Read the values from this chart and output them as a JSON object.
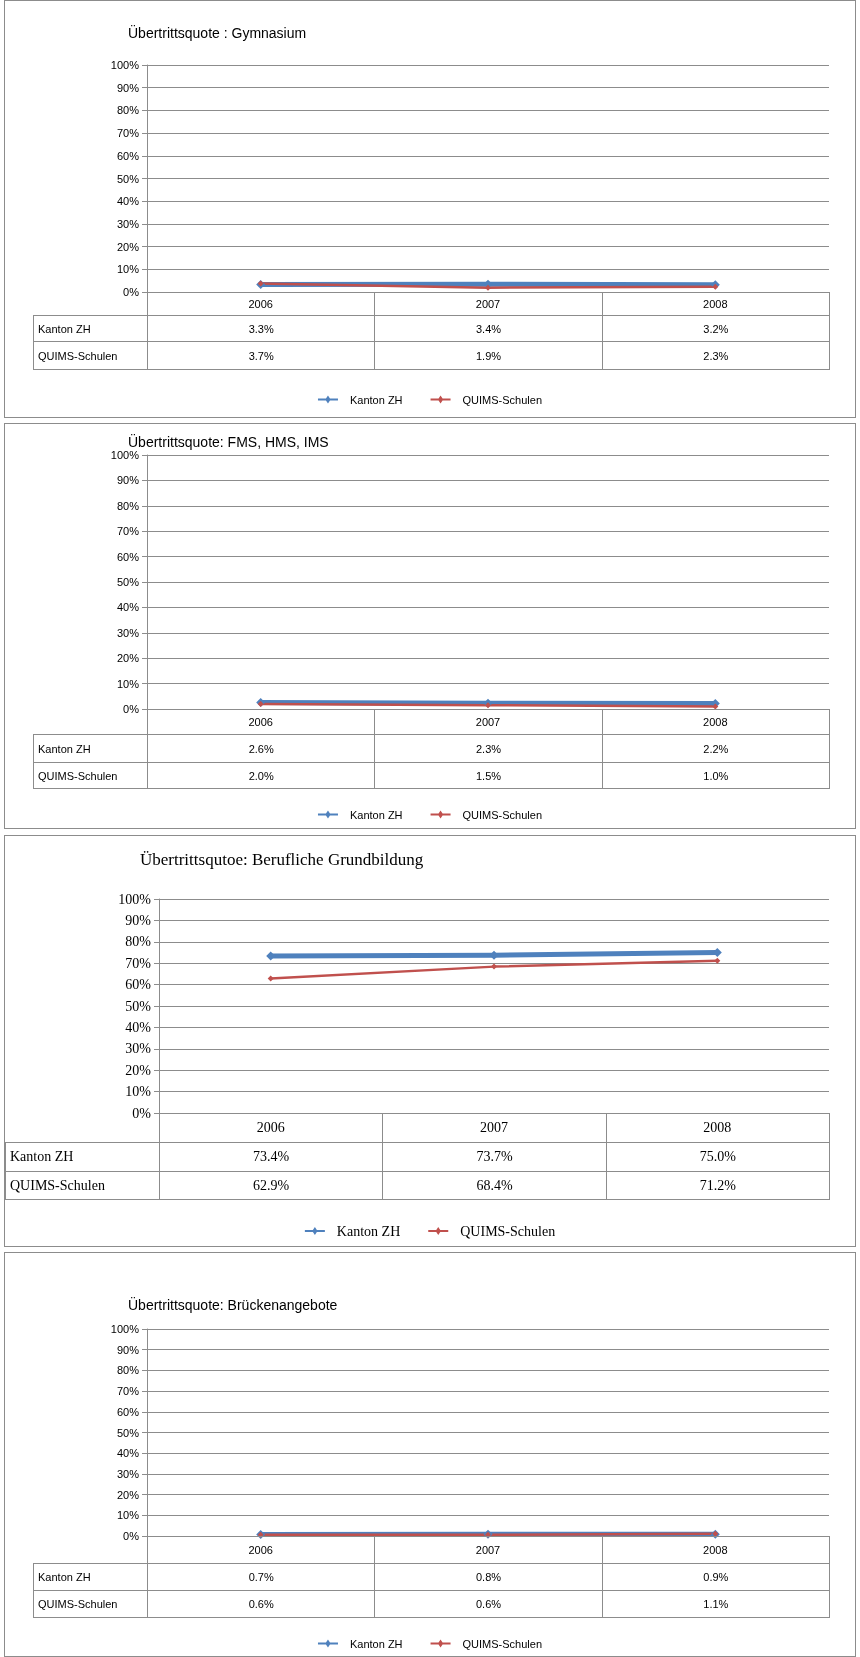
{
  "chart_data": [
    {
      "type": "line",
      "title": "Übertrittsquote : Gymnasium",
      "categories": [
        "2006",
        "2007",
        "2008"
      ],
      "series": [
        {
          "name": "Kanton ZH",
          "color": "#4f81bd",
          "values": [
            3.3,
            3.4,
            3.2
          ],
          "value_labels": [
            "3.3%",
            "3.4%",
            "3.2%"
          ]
        },
        {
          "name": "QUIMS-Schulen",
          "color": "#c0504d",
          "values": [
            3.7,
            1.9,
            2.3
          ],
          "value_labels": [
            "3.7%",
            "1.9%",
            "2.3%"
          ]
        }
      ],
      "ylim": [
        0,
        100
      ],
      "yticks": [
        {
          "value": 0,
          "label": "0%"
        },
        {
          "value": 10,
          "label": "10%"
        },
        {
          "value": 20,
          "label": "20%"
        },
        {
          "value": 30,
          "label": "30%"
        },
        {
          "value": 40,
          "label": "40%"
        },
        {
          "value": 50,
          "label": "50%"
        },
        {
          "value": 60,
          "label": "60%"
        },
        {
          "value": 70,
          "label": "70%"
        },
        {
          "value": 80,
          "label": "80%"
        },
        {
          "value": 90,
          "label": "90%"
        },
        {
          "value": 100,
          "label": "100%"
        }
      ],
      "grid": "y",
      "legend": "bottom",
      "marker": "diamond",
      "line_style": "solid"
    },
    {
      "type": "line",
      "title": "Übertrittsquote: FMS, HMS, IMS",
      "categories": [
        "2006",
        "2007",
        "2008"
      ],
      "series": [
        {
          "name": "Kanton ZH",
          "color": "#4f81bd",
          "values": [
            2.6,
            2.3,
            2.2
          ],
          "value_labels": [
            "2.6%",
            "2.3%",
            "2.2%"
          ]
        },
        {
          "name": "QUIMS-Schulen",
          "color": "#c0504d",
          "values": [
            2.0,
            1.5,
            1.0
          ],
          "value_labels": [
            "2.0%",
            "1.5%",
            "1.0%"
          ]
        }
      ],
      "ylim": [
        0,
        100
      ],
      "yticks": [
        {
          "value": 0,
          "label": "0%"
        },
        {
          "value": 10,
          "label": "10%"
        },
        {
          "value": 20,
          "label": "20%"
        },
        {
          "value": 30,
          "label": "30%"
        },
        {
          "value": 40,
          "label": "40%"
        },
        {
          "value": 50,
          "label": "50%"
        },
        {
          "value": 60,
          "label": "60%"
        },
        {
          "value": 70,
          "label": "70%"
        },
        {
          "value": 80,
          "label": "80%"
        },
        {
          "value": 90,
          "label": "90%"
        },
        {
          "value": 100,
          "label": "100%"
        }
      ],
      "grid": "y",
      "legend": "bottom",
      "marker": "diamond",
      "line_style": "solid"
    },
    {
      "type": "line",
      "title": "Übertrittsqutoe: Berufliche Grundbildung",
      "categories": [
        "2006",
        "2007",
        "2008"
      ],
      "series": [
        {
          "name": "Kanton ZH",
          "color": "#4f81bd",
          "values": [
            73.4,
            73.7,
            75.0
          ],
          "value_labels": [
            "73.4%",
            "73.7%",
            "75.0%"
          ]
        },
        {
          "name": "QUIMS-Schulen",
          "color": "#c0504d",
          "values": [
            62.9,
            68.4,
            71.2
          ],
          "value_labels": [
            "62.9%",
            "68.4%",
            "71.2%"
          ]
        }
      ],
      "ylim": [
        0,
        100
      ],
      "yticks": [
        {
          "value": 0,
          "label": "0%"
        },
        {
          "value": 10,
          "label": "10%"
        },
        {
          "value": 20,
          "label": "20%"
        },
        {
          "value": 30,
          "label": "30%"
        },
        {
          "value": 40,
          "label": "40%"
        },
        {
          "value": 50,
          "label": "50%"
        },
        {
          "value": 60,
          "label": "60%"
        },
        {
          "value": 70,
          "label": "70%"
        },
        {
          "value": 80,
          "label": "80%"
        },
        {
          "value": 90,
          "label": "90%"
        },
        {
          "value": 100,
          "label": "100%"
        }
      ],
      "grid": "y",
      "legend": "bottom",
      "marker": "diamond",
      "line_style": "solid"
    },
    {
      "type": "line",
      "title": "Übertrittsquote: Brückenangebote",
      "categories": [
        "2006",
        "2007",
        "2008"
      ],
      "series": [
        {
          "name": "Kanton ZH",
          "color": "#4f81bd",
          "values": [
            0.7,
            0.8,
            0.9
          ],
          "value_labels": [
            "0.7%",
            "0.8%",
            "0.9%"
          ]
        },
        {
          "name": "QUIMS-Schulen",
          "color": "#c0504d",
          "values": [
            0.6,
            0.6,
            1.1
          ],
          "value_labels": [
            "0.6%",
            "0.6%",
            "1.1%"
          ]
        }
      ],
      "ylim": [
        0,
        100
      ],
      "yticks": [
        {
          "value": 0,
          "label": "0%"
        },
        {
          "value": 10,
          "label": "10%"
        },
        {
          "value": 20,
          "label": "20%"
        },
        {
          "value": 30,
          "label": "30%"
        },
        {
          "value": 40,
          "label": "40%"
        },
        {
          "value": 50,
          "label": "50%"
        },
        {
          "value": 60,
          "label": "60%"
        },
        {
          "value": 70,
          "label": "70%"
        },
        {
          "value": 80,
          "label": "80%"
        },
        {
          "value": 90,
          "label": "90%"
        },
        {
          "value": 100,
          "label": "100%"
        }
      ],
      "grid": "y",
      "legend": "bottom",
      "marker": "diamond",
      "line_style": "solid"
    }
  ]
}
